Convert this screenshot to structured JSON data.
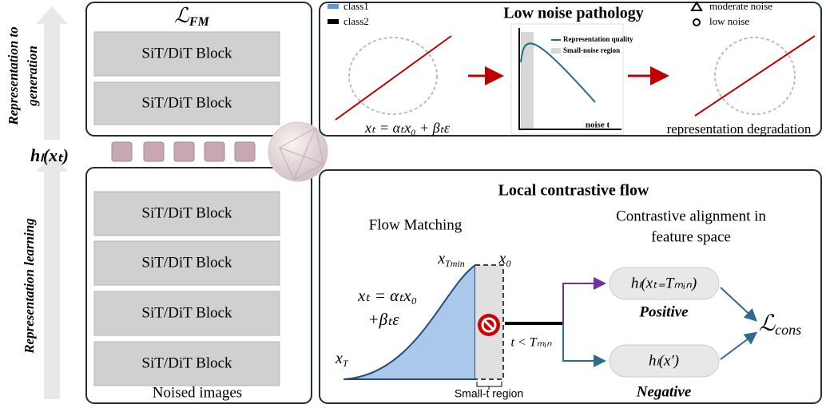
{
  "side_labels": {
    "top": [
      "Representation to",
      "generation"
    ],
    "bottom": "Representation learning",
    "feature": "hₗ(xₜ)"
  },
  "generation_stack": {
    "loss": {
      "base": "ℒ",
      "sub": "FM"
    },
    "blocks": [
      "SiT/DiT Block",
      "SiT/DiT Block"
    ]
  },
  "learning_stack": {
    "blocks": [
      "SiT/DiT Block",
      "SiT/DiT Block",
      "SiT/DiT Block",
      "SiT/DiT Block"
    ],
    "caption": "Noised images"
  },
  "pathology": {
    "title": "Low noise pathology",
    "legend": [
      "class1",
      "class2"
    ],
    "noise_legend": [
      "moderate noise",
      "low noise"
    ],
    "plot": {
      "legend": [
        "Representation quality",
        "Small-noise region"
      ],
      "xlabel": "noise t"
    },
    "equation": "xₜ = αₜx₀ + βₜε",
    "caption": "representation degradation"
  },
  "contrastive": {
    "title": "Local contrastive flow",
    "flow_title": "Flow Matching",
    "alignment_title": [
      "Contrastive alignment in",
      "feature space"
    ],
    "x_tmin": {
      "base": "x",
      "sub": "Tmin"
    },
    "x_0": {
      "base": "x",
      "sub": "0"
    },
    "x_T": {
      "base": "x",
      "sub": "T"
    },
    "equation": [
      "xₜ = αₜx₀",
      "+βₜε"
    ],
    "condition": "t < Tₘᵢₙ",
    "region": "Small-t region",
    "positive": {
      "formula": "hₗ(xₜ₌Tₘᵢₙ)",
      "label": "Positive"
    },
    "negative": {
      "formula": "hₗ(x′)",
      "label": "Negative"
    },
    "loss": {
      "base": "ℒ",
      "sub": "cons"
    }
  }
}
